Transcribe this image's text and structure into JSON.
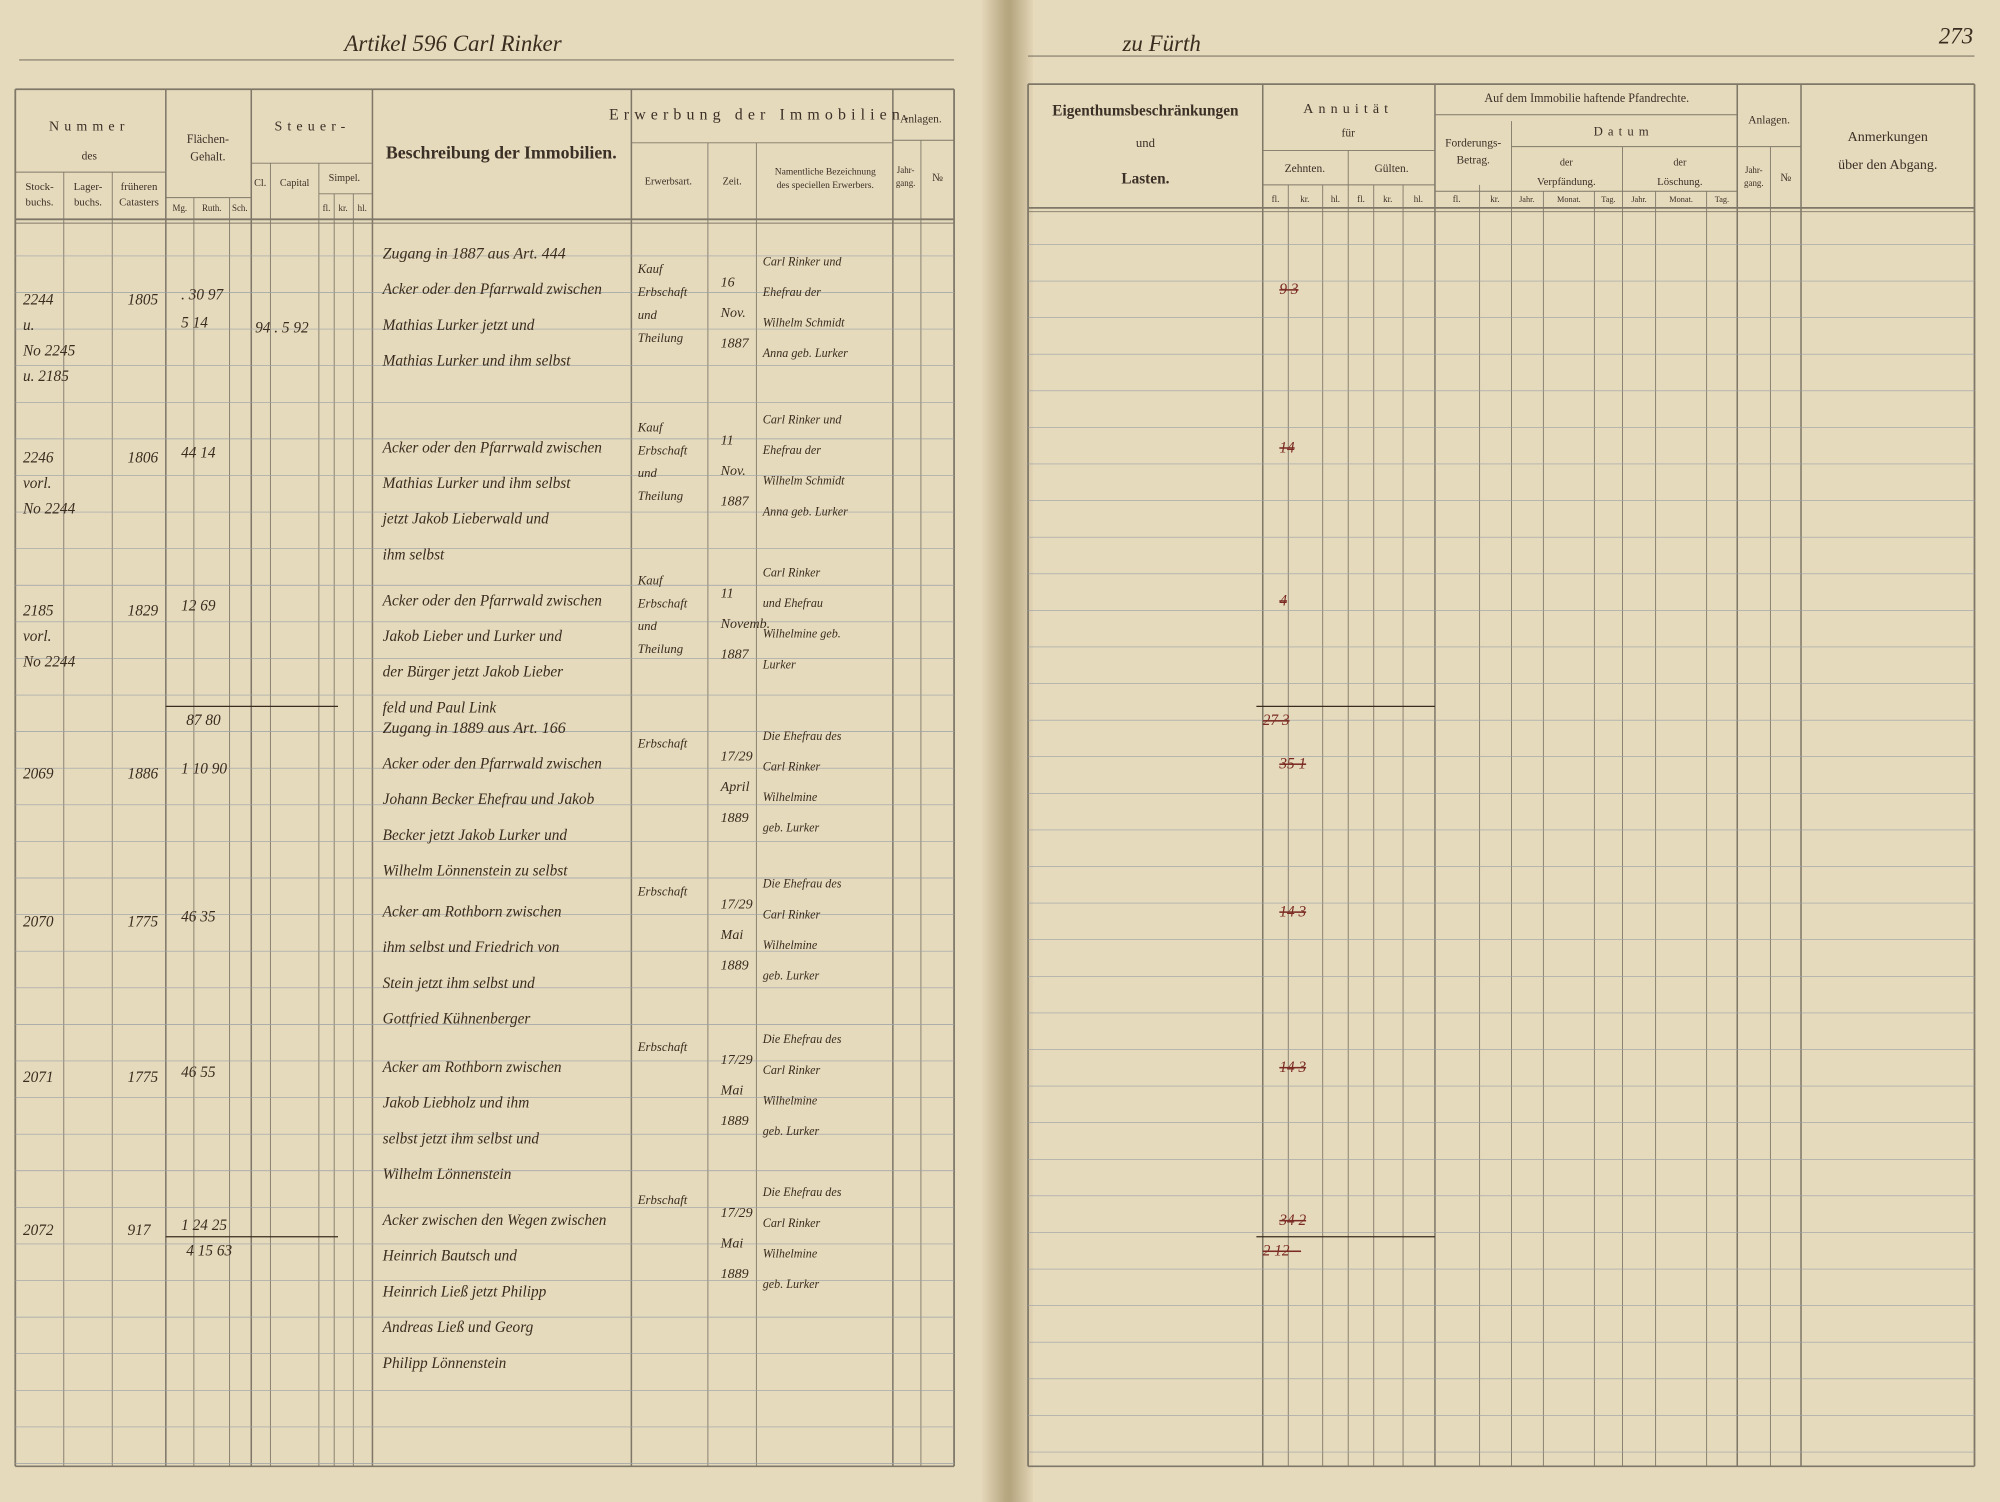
{
  "header": {
    "left_title": "Artikel 596 Carl Rinker",
    "right_title": "zu Fürth",
    "page_number": "273"
  },
  "left_columns": {
    "nummer": "Nummer",
    "des": "des",
    "stockbuchs": [
      "Stock-",
      "buchs."
    ],
    "lagerbuchs": [
      "Lager-",
      "buchs."
    ],
    "frueheren": [
      "früheren",
      "Catasters"
    ],
    "flaechen": [
      "Flächen-",
      "Gehalt."
    ],
    "mg": "Mg.",
    "ruth": "Ruth.",
    "sch": "Sch.",
    "steuer": "Steuer-",
    "cl": "Cl.",
    "capital": "Capital",
    "simpel": "Simpel.",
    "fl": "fl.",
    "kr": "kr.",
    "hl": "hl.",
    "beschreibung": "Beschreibung der Immobilien.",
    "erwerbung": "Erwerbung der Immobilien.",
    "erwerbsart": "Erwerbsart.",
    "zeit": "Zeit.",
    "erwerber": [
      "Namentliche Bezeichnung",
      "des speciellen Erwerbers."
    ],
    "anlagen": "Anlagen.",
    "jahrgang": [
      "Jahr-",
      "gang."
    ],
    "nr": "№"
  },
  "right_columns": {
    "eigenthum": "Eigenthumsbeschränkungen",
    "und": "und",
    "lasten": "Lasten.",
    "annuitaet": "Annuität",
    "fuer": "für",
    "zehnten": "Zehnten.",
    "gulten": "Gülten.",
    "fl": "fl.",
    "kr": "kr.",
    "hl": "hl.",
    "pfandrechte": "Auf dem Immobilie haftende Pfandrechte.",
    "forderung": [
      "Forderungs-",
      "Betrag."
    ],
    "datum": "Datum",
    "der": "der",
    "verpfaendung": "Verpfändung.",
    "loeschung": "Löschung.",
    "jahr": "Jahr.",
    "monat": "Monat.",
    "tag": "Tag.",
    "anlagen": "Anlagen.",
    "jahrgang": [
      "Jahr-",
      "gang."
    ],
    "nr": "№",
    "anmerkungen": [
      "Anmerkungen",
      "über den Abgang."
    ]
  },
  "entries": [
    {
      "zugang": "Zugang in 1887 aus Art. 444",
      "stock": [
        "2244",
        "u.",
        "No 2245",
        "u. 2185"
      ],
      "lager": "1805",
      "flaeche": [
        ". 30 97",
        "5 14"
      ],
      "steuer": "94 . 5 92",
      "beschreibung": [
        "Acker oder den Pfarrwald zwischen",
        "Mathias Lurker jetzt und",
        "Mathias Lurker und ihm selbst"
      ],
      "erwerbsart": [
        "Kauf",
        "Erbschaft",
        "und",
        "Theilung"
      ],
      "zeit": [
        "16",
        "Nov.",
        "1887"
      ],
      "erwerber": [
        "Carl Rinker und",
        "Ehefrau der",
        "Wilhelm Schmidt",
        "Anna geb. Lurker"
      ],
      "zehnten": "9 3"
    },
    {
      "stock": [
        "2246",
        "vorl.",
        "No 2244"
      ],
      "lager": "1806",
      "flaeche": [
        "44 14"
      ],
      "beschreibung": [
        "Acker oder den Pfarrwald zwischen",
        "Mathias Lurker und ihm selbst",
        "jetzt Jakob Lieberwald und",
        "ihm selbst"
      ],
      "erwerbsart": [
        "Kauf",
        "Erbschaft",
        "und",
        "Theilung"
      ],
      "zeit": [
        "11",
        "Nov.",
        "1887"
      ],
      "erwerber": [
        "Carl Rinker und",
        "Ehefrau der",
        "Wilhelm Schmidt",
        "Anna geb. Lurker"
      ],
      "zehnten": "14"
    },
    {
      "stock": [
        "2185",
        "vorl.",
        "No 2244"
      ],
      "lager": "1829",
      "flaeche": [
        "12 69"
      ],
      "beschreibung": [
        "Acker oder den Pfarrwald zwischen",
        "Jakob Lieber und Lurker und",
        "der Bürger jetzt Jakob Lieber",
        "feld und Paul Link"
      ],
      "erwerbsart": [
        "Kauf",
        "Erbschaft",
        "und",
        "Theilung"
      ],
      "zeit": [
        "11",
        "Novemb.",
        "1887"
      ],
      "erwerber": [
        "Carl Rinker",
        "und Ehefrau",
        "Wilhelmine geb.",
        "Lurker"
      ],
      "zehnten": "4"
    },
    {
      "zugang": "Zugang in 1889 aus Art. 166",
      "stock": [
        "2069"
      ],
      "lager": "1886",
      "flaeche": [
        "1 10 90"
      ],
      "beschreibung": [
        "Acker oder den Pfarrwald zwischen",
        "Johann Becker Ehefrau und Jakob",
        "Becker jetzt Jakob Lurker und",
        "Wilhelm Lönnenstein zu selbst"
      ],
      "erwerbsart": [
        "Erbschaft"
      ],
      "zeit": [
        "17/29",
        "April",
        "1889"
      ],
      "erwerber": [
        "Die Ehefrau des",
        "Carl Rinker",
        "Wilhelmine",
        "geb. Lurker"
      ],
      "zehnten": "35 1"
    },
    {
      "stock": [
        "2070"
      ],
      "lager": "1775",
      "flaeche": [
        "46 35"
      ],
      "beschreibung": [
        "Acker am Rothborn zwischen",
        "ihm selbst und Friedrich von",
        "Stein jetzt ihm selbst und",
        "Gottfried Kühnenberger"
      ],
      "erwerbsart": [
        "Erbschaft"
      ],
      "zeit": [
        "17/29",
        "Mai",
        "1889"
      ],
      "erwerber": [
        "Die Ehefrau des",
        "Carl Rinker",
        "Wilhelmine",
        "geb. Lurker"
      ],
      "zehnten": "14 3"
    },
    {
      "stock": [
        "2071"
      ],
      "lager": "1775",
      "flaeche": [
        "46 55"
      ],
      "beschreibung": [
        "Acker am Rothborn zwischen",
        "Jakob Liebholz und ihm",
        "selbst jetzt ihm selbst und",
        "Wilhelm Lönnenstein"
      ],
      "erwerbsart": [
        "Erbschaft"
      ],
      "zeit": [
        "17/29",
        "Mai",
        "1889"
      ],
      "erwerber": [
        "Die Ehefrau des",
        "Carl Rinker",
        "Wilhelmine",
        "geb. Lurker"
      ],
      "zehnten": "14 3"
    },
    {
      "stock": [
        "2072"
      ],
      "lager": "917",
      "flaeche": [
        "1 24 25"
      ],
      "beschreibung": [
        "Acker zwischen den Wegen zwischen",
        "Heinrich Bautsch und",
        "Heinrich Ließ jetzt Philipp",
        "Andreas Ließ und Georg",
        "Philipp Lönnenstein"
      ],
      "erwerbsart": [
        "Erbschaft"
      ],
      "zeit": [
        "17/29",
        "Mai",
        "1889"
      ],
      "erwerber": [
        "Die Ehefrau des",
        "Carl Rinker",
        "Wilhelmine",
        "geb. Lurker"
      ],
      "zehnten": "34 2"
    }
  ],
  "totals": [
    {
      "flaeche": "87 80",
      "zehnten": "27 3"
    },
    {
      "flaeche": "4 15 63",
      "zehnten": "2 12 –"
    }
  ]
}
